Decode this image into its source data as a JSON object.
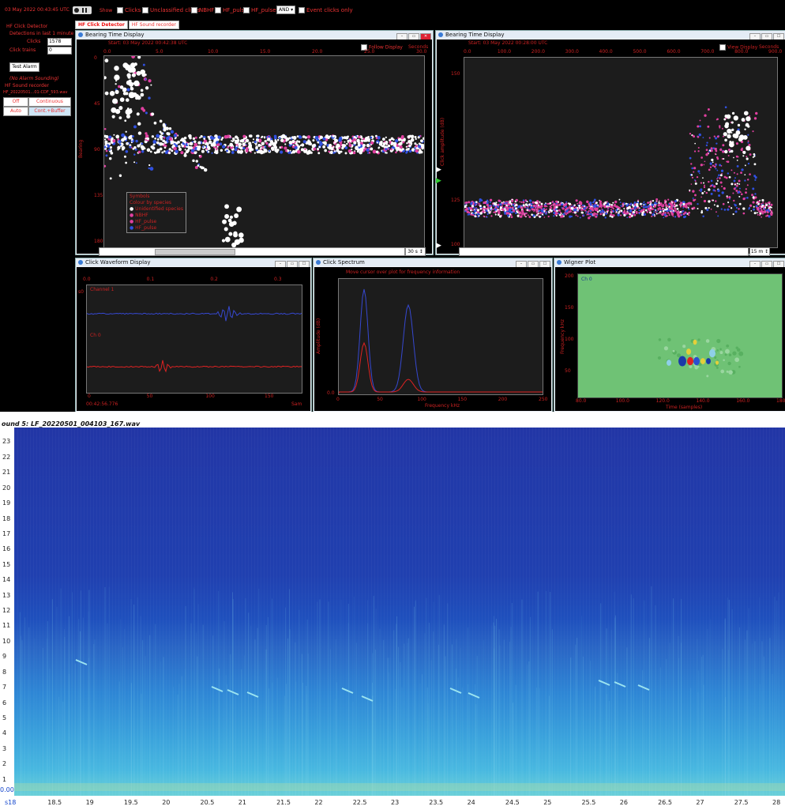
{
  "topbar": {
    "timestamp": "03 May 2022 00:43:45 UTC",
    "show_label": "Show",
    "checks": [
      "Clicks",
      "Unclassified clicks",
      "NBHF",
      "HF_pulse",
      "HF_pulse"
    ],
    "combine": "AND",
    "event_only": "Event clicks only"
  },
  "tabs": [
    "HF Click Detector",
    "HF Sound recorder"
  ],
  "left_panel": {
    "section1": "HF Click Detector",
    "detections_label": "Detections in last 1 minute",
    "clicks_label": "Clicks",
    "clicks_value": "1578",
    "trains_label": "Click trains",
    "trains_value": "0",
    "test_alarm": "Test Alarm",
    "alarm_status": "(No Alarm Sounding)",
    "section2": "HF Sound recorder",
    "rec_file": "HF_20220501...01-CDF_593.wav",
    "buttons": [
      "Off",
      "Continuous",
      "Auto",
      "Cont.+Buffer"
    ]
  },
  "bearing1": {
    "title": "Bearing Time Display",
    "start_text": "Start: 03 May 2022 00:42:38 UTC",
    "follow": "Follow Display",
    "seconds": "Seconds",
    "x_ticks": [
      "0.0",
      "5.0",
      "10.0",
      "15.0",
      "20.0",
      "25.0",
      "30.0"
    ],
    "y_label": "Bearing",
    "y_ticks": [
      "0",
      "45",
      "90",
      "135",
      "180"
    ],
    "span": "30 s",
    "legend_title": "Symbols",
    "legend_sub": "Colour by species",
    "legend_items": [
      "Unidentified species",
      "NBHF",
      "HF_pulse",
      "HF_pulse"
    ]
  },
  "bearing2": {
    "title": "Bearing Time Display",
    "start_text": "Start: 03 May 2022 00:28:00 UTC",
    "follow": "View Display",
    "seconds": "Seconds",
    "x_ticks": [
      "0.0",
      "100.0",
      "200.0",
      "300.0",
      "400.0",
      "500.0",
      "600.0",
      "700.0",
      "800.0",
      "900.0"
    ],
    "y_label": "Click amplitude (dB)",
    "y_ticks": [
      "150",
      "125",
      "100"
    ],
    "span": "15 m"
  },
  "waveform": {
    "title": "Click Waveform Display",
    "x_ticks": [
      "0.0",
      "0.1",
      "0.2",
      "0.3"
    ],
    "ch1": "Channel 1",
    "ch0": "Ch 0",
    "x_label": "Time",
    "x_bottom": [
      "0",
      "50",
      "100",
      "150"
    ],
    "time_readout": "00:42:56.776",
    "unit": "Sam"
  },
  "spectrum": {
    "title": "Click Spectrum",
    "hint": "Move cursor over plot for frequency information",
    "y_label": "Amplitude (dB)",
    "y_tick": "0.0",
    "x_ticks": [
      "0",
      "50",
      "100",
      "150",
      "200",
      "250"
    ],
    "x_label": "Frequency kHz"
  },
  "wigner": {
    "title": "Wigner Plot",
    "ch": "Ch 0",
    "y_label": "Frequency kHz",
    "y_ticks": [
      "200",
      "150",
      "100",
      "50"
    ],
    "x_ticks": [
      "80.0",
      "100.0",
      "120.0",
      "140.0",
      "160.0",
      "180.0"
    ],
    "x_label": "Time (samples)"
  },
  "spectrogram": {
    "title": "ound 5: LF_20220501_004103_167.wav",
    "y_ticks": [
      "23",
      "22",
      "21",
      "20",
      "19",
      "18",
      "17",
      "16",
      "15",
      "14",
      "13",
      "12",
      "11",
      "10",
      "9",
      "8",
      "7",
      "6",
      "5",
      "4",
      "3",
      "2",
      "1"
    ],
    "y_bottom": "0.00",
    "x_start": "s18",
    "x_ticks": [
      "18.5",
      "19",
      "19.5",
      "20",
      "20.5",
      "21",
      "21.5",
      "22",
      "22.5",
      "23",
      "23.5",
      "24",
      "24.5",
      "25",
      "25.5",
      "26",
      "26.5",
      "27",
      "27.5",
      "28"
    ]
  },
  "colors": {
    "accent_red": "#e33333",
    "nbhf": "#e040a0",
    "hf_pulse": "#3050e0",
    "unclassified": "#ffffff",
    "spectrogram_low": "#2236a6",
    "spectrogram_high": "#6ad0d8"
  }
}
